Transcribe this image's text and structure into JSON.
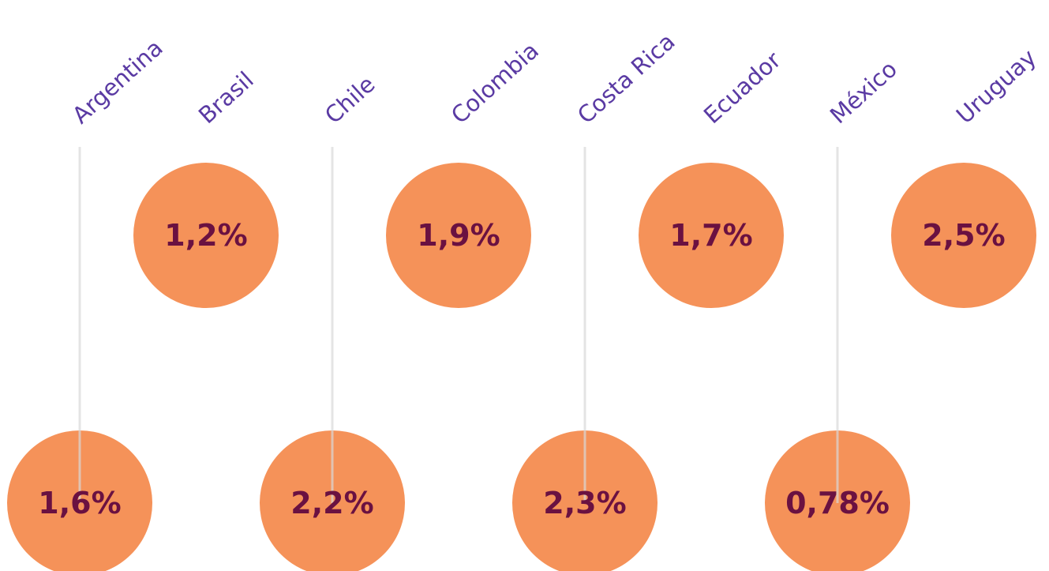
{
  "items": [
    {
      "label": "Argentina",
      "value": "1,6%"
    },
    {
      "label": "Brasil",
      "value": "1,2%"
    },
    {
      "label": "Chile",
      "value": "2,2%"
    },
    {
      "label": "Colombia",
      "value": "1,9%"
    },
    {
      "label": "Costa Rica",
      "value": "2,3%"
    },
    {
      "label": "Ecuador",
      "value": "1,7%"
    },
    {
      "label": "México",
      "value": "0,78%"
    },
    {
      "label": "Uruguay",
      "value": "2,5%"
    }
  ]
}
